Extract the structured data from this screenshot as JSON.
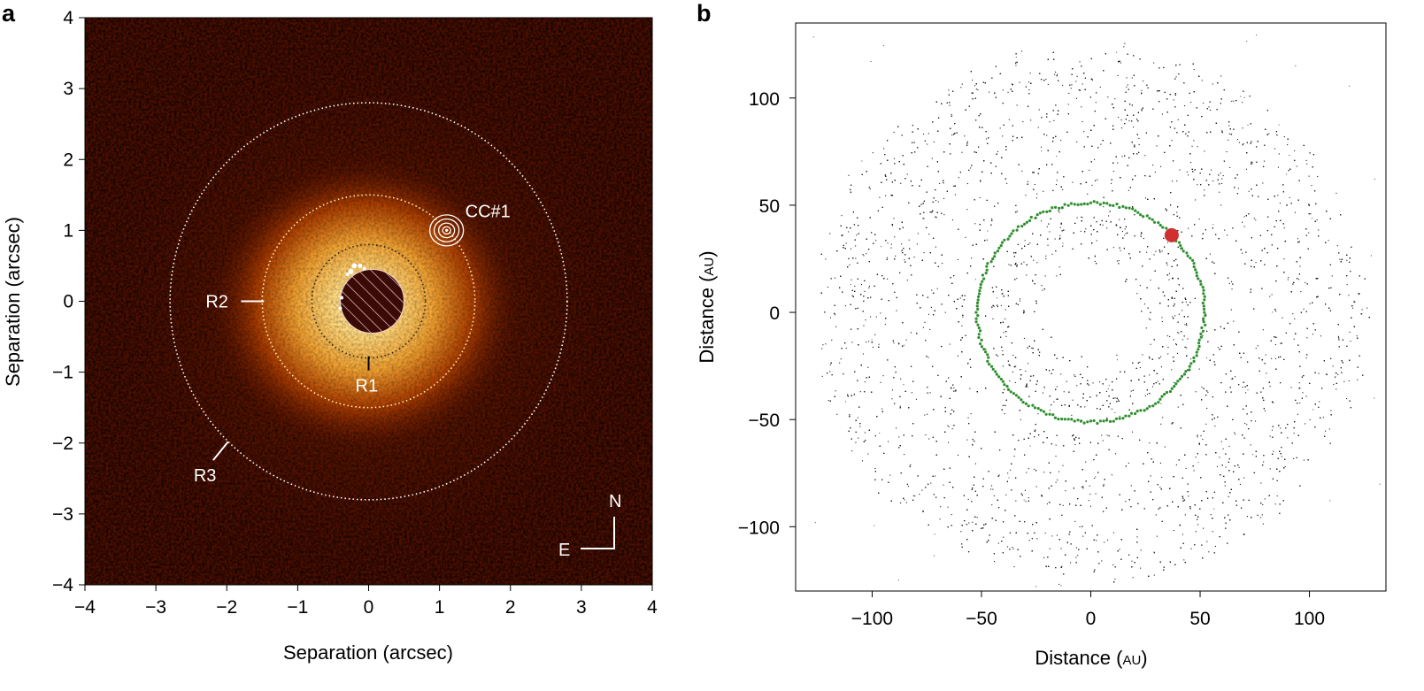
{
  "figure": {
    "panel_a_letter": "a",
    "panel_b_letter": "b"
  },
  "chart_data": [
    {
      "type": "image",
      "panel": "a",
      "xlabel": "Separation (arcsec)",
      "ylabel": "Separation (arcsec)",
      "xlim": [
        -4,
        4
      ],
      "ylim": [
        -4,
        4
      ],
      "xticks": [
        "−4",
        "−3",
        "−2",
        "−1",
        "0",
        "1",
        "2",
        "3",
        "4"
      ],
      "yticks": [
        "4",
        "3",
        "2",
        "1",
        "0",
        "−1",
        "−2",
        "−3",
        "−4"
      ],
      "colormap": [
        "#1a0300",
        "#5a1200",
        "#b83c00",
        "#f0a030",
        "#ffe8a0"
      ],
      "rings": [
        {
          "label": "R1",
          "radius_arcsec": 0.8,
          "color": "#222222"
        },
        {
          "label": "R2",
          "radius_arcsec": 1.5,
          "color": "#fff3c0"
        },
        {
          "label": "R3",
          "radius_arcsec": 2.8,
          "color": "#ffffff"
        }
      ],
      "masked_region_radius_arcsec": 0.45,
      "companion": {
        "label": "CC#1",
        "x": 1.1,
        "y": 1.0
      },
      "compass": {
        "north": "N",
        "east": "E"
      }
    },
    {
      "type": "scatter",
      "panel": "b",
      "xlabel_main": "Distance (",
      "xlabel_unit": "AU",
      "xlabel_close": ")",
      "ylabel_main": "Distance (",
      "ylabel_unit": "AU",
      "ylabel_close": ")",
      "xlim": [
        -135,
        135
      ],
      "ylim": [
        -130,
        135
      ],
      "xticks": [
        "−100",
        "−50",
        "0",
        "50",
        "100"
      ],
      "yticks": [
        "100",
        "50",
        "0",
        "−50",
        "−100"
      ],
      "xtick_values": [
        -100,
        -50,
        0,
        50,
        100
      ],
      "ytick_values": [
        100,
        50,
        0,
        -50,
        -100
      ],
      "disk_inner_radius_AU": 20,
      "disk_outer_radius_AU": 130,
      "gaps_AU": [
        29,
        36,
        57,
        70
      ],
      "planet_orbit_radius_AU": 52,
      "planet": {
        "x": 37,
        "y": 36,
        "color": "#d03030"
      },
      "particle_color": "#1a1a1a",
      "orbit_color": "#2f8f2f"
    }
  ]
}
